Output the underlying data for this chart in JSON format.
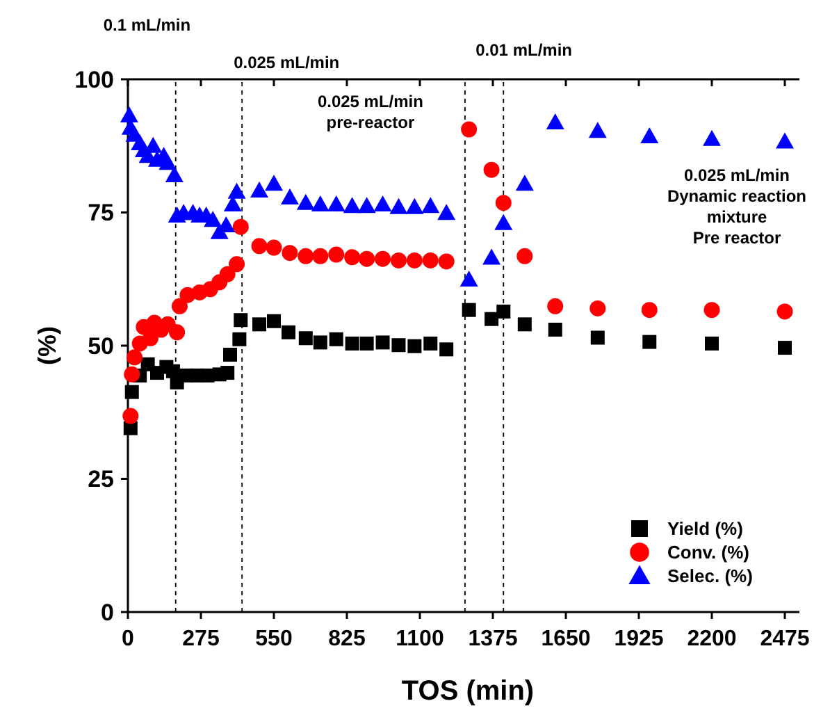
{
  "chart_data": {
    "type": "scatter",
    "xlabel": "TOS (min)",
    "ylabel": "(%)",
    "xlim": [
      0,
      2530
    ],
    "xticks": [
      0,
      275,
      550,
      825,
      1100,
      1375,
      1650,
      1925,
      2200,
      2475
    ],
    "ylim": [
      0,
      100
    ],
    "yticks": [
      0,
      25,
      50,
      75,
      100
    ],
    "grid": false,
    "legend": "bottom right",
    "series": [
      {
        "name": "Yield (%)",
        "color": "#000000",
        "marker": "square",
        "x": [
          10,
          15,
          45,
          75,
          110,
          145,
          170,
          185,
          220,
          260,
          300,
          345,
          375,
          385,
          420,
          425,
          495,
          550,
          605,
          670,
          725,
          785,
          845,
          900,
          960,
          1020,
          1080,
          1140,
          1200,
          1285,
          1370,
          1415,
          1495,
          1610,
          1770,
          1965,
          2200,
          2475
        ],
        "values": [
          34.5,
          41.3,
          44.4,
          46.5,
          44.9,
          46,
          45.2,
          43.1,
          44.4,
          44.4,
          44.4,
          44.6,
          44.9,
          48.3,
          51.2,
          54.8,
          54,
          54.6,
          52.5,
          51.4,
          50.6,
          51.2,
          50.4,
          50.4,
          50.6,
          50.1,
          49.9,
          50.4,
          49.3,
          56.7,
          55,
          56.4,
          54,
          53,
          51.5,
          50.7,
          50.4,
          49.6
        ]
      },
      {
        "name": "Conv. (%)",
        "color": "#ff0000",
        "marker": "circle",
        "x": [
          10,
          15,
          25,
          45,
          60,
          85,
          100,
          125,
          150,
          185,
          195,
          225,
          270,
          310,
          345,
          375,
          410,
          425,
          495,
          550,
          610,
          670,
          725,
          785,
          845,
          900,
          960,
          1020,
          1080,
          1140,
          1200,
          1285,
          1370,
          1415,
          1495,
          1610,
          1770,
          1965,
          2200,
          2475
        ],
        "values": [
          36.8,
          44.6,
          47.8,
          50.4,
          53.5,
          51.4,
          54.3,
          53,
          54,
          52.5,
          57.4,
          59.5,
          60,
          60.6,
          61.9,
          63.4,
          65.3,
          72.3,
          68.7,
          68.4,
          67.4,
          66.8,
          66.8,
          67.1,
          66.6,
          66.3,
          66.3,
          66,
          66,
          66,
          65.8,
          90.6,
          83,
          76.8,
          66.8,
          57.4,
          57,
          56.7,
          56.7,
          56.4
        ]
      },
      {
        "name": "Selec. (%)",
        "color": "#0000ff",
        "marker": "triangle",
        "x": [
          5,
          10,
          25,
          45,
          60,
          75,
          95,
          110,
          135,
          150,
          175,
          185,
          210,
          245,
          270,
          295,
          320,
          345,
          370,
          395,
          410,
          495,
          550,
          610,
          670,
          725,
          785,
          845,
          900,
          960,
          1020,
          1080,
          1140,
          1200,
          1285,
          1370,
          1415,
          1495,
          1610,
          1770,
          1965,
          2200,
          2475
        ],
        "values": [
          93.2,
          90.9,
          89.6,
          88,
          86.7,
          85.6,
          87.5,
          84.9,
          85.6,
          84.3,
          82,
          74.4,
          74.9,
          74.9,
          74.4,
          74.4,
          73.6,
          71.3,
          72.6,
          76.5,
          78.9,
          79.1,
          80.4,
          77.8,
          76.8,
          76.5,
          76.5,
          76.2,
          76.2,
          76.5,
          76,
          76,
          76.2,
          74.9,
          62.4,
          66.5,
          73,
          80.4,
          91.9,
          90.3,
          89.3,
          88.8,
          88.3
        ]
      }
    ],
    "ref_lines": [
      {
        "axis": "x",
        "value": 180,
        "label": "0.1 mL/min",
        "line_style": "dashed",
        "color": "#000000"
      },
      {
        "axis": "x",
        "value": 430,
        "label": "0.025 mL/min",
        "line_style": "dashed",
        "color": "#000000"
      },
      {
        "axis": "x",
        "value": 1270,
        "label": "0.025 mL/min\npre-reactor",
        "line_style": "dashed",
        "color": "#000000"
      },
      {
        "axis": "x",
        "value": 1415,
        "label": "0.01 mL/min",
        "line_style": "dashed",
        "color": "#000000"
      }
    ],
    "annotations": [
      "0.025 mL/min\nDynamic reaction\nmixture\nPre reactor"
    ]
  }
}
